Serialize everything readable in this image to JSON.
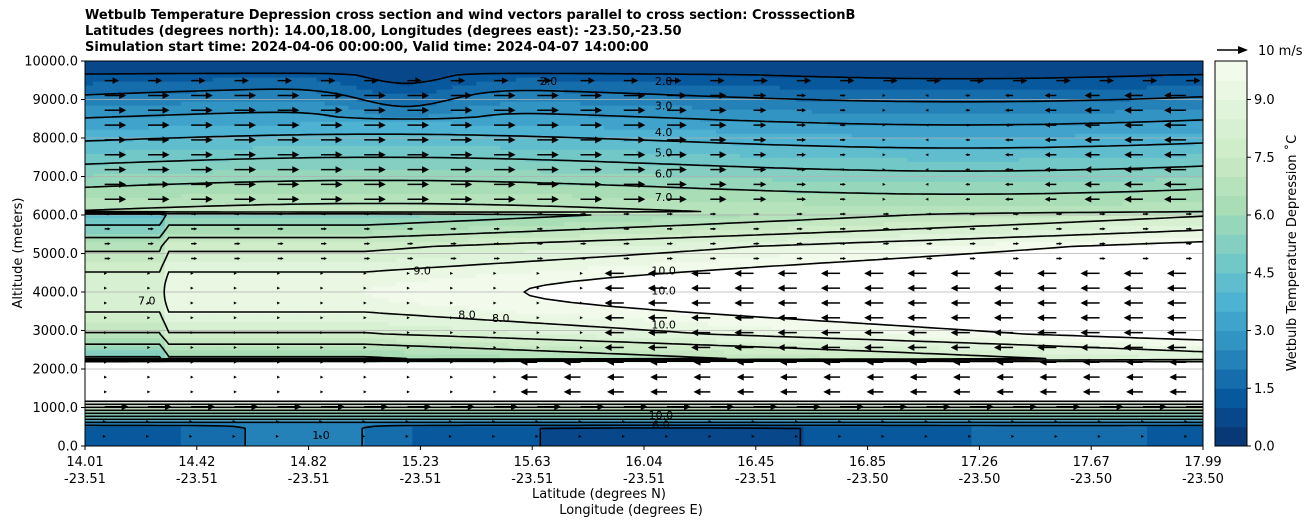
{
  "chart_data": {
    "type": "contour",
    "title_lines": [
      "Wetbulb Temperature Depression cross section and wind vectors parallel to cross section: CrosssectionB",
      "Latitudes (degrees north): 14.00,18.00, Longitudes (degrees east): -23.50,-23.50",
      "Simulation start time: 2024-04-06 00:00:00, Valid time: 2024-04-07 14:00:00"
    ],
    "xlabel": "Latitude (degrees N)",
    "xlabel2": "Longitude (degrees E)",
    "ylabel": "Altitude (meters)",
    "ylim": [
      0,
      10000
    ],
    "y_ticks": [
      "0.0",
      "1000.0",
      "2000.0",
      "3000.0",
      "4000.0",
      "5000.0",
      "6000.0",
      "7000.0",
      "8000.0",
      "9000.0",
      "10000.0"
    ],
    "y_tick_values": [
      0,
      1000,
      2000,
      3000,
      4000,
      5000,
      6000,
      7000,
      8000,
      9000,
      10000
    ],
    "x_ticks": [
      {
        "lat": "14.01",
        "lon": "-23.51"
      },
      {
        "lat": "14.42",
        "lon": "-23.51"
      },
      {
        "lat": "14.82",
        "lon": "-23.51"
      },
      {
        "lat": "15.23",
        "lon": "-23.51"
      },
      {
        "lat": "15.63",
        "lon": "-23.51"
      },
      {
        "lat": "16.04",
        "lon": "-23.51"
      },
      {
        "lat": "16.45",
        "lon": "-23.51"
      },
      {
        "lat": "16.85",
        "lon": "-23.50"
      },
      {
        "lat": "17.26",
        "lon": "-23.50"
      },
      {
        "lat": "17.67",
        "lon": "-23.50"
      },
      {
        "lat": "17.99",
        "lon": "-23.50"
      }
    ],
    "colorbar": {
      "label": "Wetbulb Temperature Depression $^\\circ$C",
      "label_display": "Wetbulb Temperature Depression ˚C",
      "ticks": [
        "0.0",
        "1.5",
        "3.0",
        "4.5",
        "6.0",
        "7.5",
        "9.0"
      ],
      "tick_values": [
        0,
        1.5,
        3,
        4.5,
        6,
        7.5,
        9
      ],
      "range": [
        0,
        10
      ],
      "colors": [
        "#08306b",
        "#08589e",
        "#2b8cbe",
        "#4eb3d3",
        "#7bccc4",
        "#a8ddb5",
        "#ccebc5",
        "#e0f3db",
        "#f7fcf0"
      ]
    },
    "quiver_key": {
      "label": "10 m/s",
      "speed": 10
    },
    "contour_levels": [
      1,
      2,
      3,
      4,
      5,
      6,
      7,
      8,
      9,
      10
    ],
    "contour_labels": [
      {
        "text": "2.0",
        "x": 15.66,
        "y": 9480
      },
      {
        "text": "2.0",
        "x": 16.07,
        "y": 9480
      },
      {
        "text": "3.0",
        "x": 16.07,
        "y": 8850
      },
      {
        "text": "4.0",
        "x": 16.07,
        "y": 8150
      },
      {
        "text": "5.0",
        "x": 16.07,
        "y": 7620
      },
      {
        "text": "6.0",
        "x": 16.07,
        "y": 7080
      },
      {
        "text": "7.0",
        "x": 16.07,
        "y": 6470
      },
      {
        "text": "10.0",
        "x": 16.07,
        "y": 4560
      },
      {
        "text": "10.0",
        "x": 16.07,
        "y": 4040
      },
      {
        "text": "10.0",
        "x": 16.07,
        "y": 3160
      },
      {
        "text": "9.0",
        "x": 15.21,
        "y": 4560
      },
      {
        "text": "8.0",
        "x": 15.37,
        "y": 3420
      },
      {
        "text": "8.0",
        "x": 15.49,
        "y": 3320
      },
      {
        "text": "7.0",
        "x": 14.23,
        "y": 3780
      },
      {
        "text": "10.0",
        "x": 16.06,
        "y": 800
      },
      {
        "text": "6.0",
        "x": 16.06,
        "y": 560
      },
      {
        "text": "1.0",
        "x": 14.85,
        "y": 280
      }
    ]
  }
}
